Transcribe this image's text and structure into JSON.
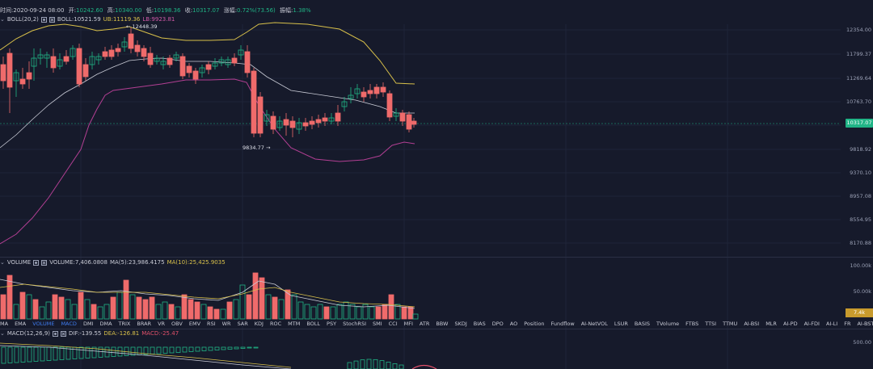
{
  "ohlc": {
    "time_label": "时间",
    "time": "2020-09-24 08:00",
    "open_label": "开",
    "open": "10242.60",
    "high_label": "高",
    "high": "10340.00",
    "low_label": "低",
    "low": "10198.36",
    "close_label": "收",
    "close": "10317.07",
    "change_label": "涨幅",
    "change": "0.72%(73.56)",
    "amp_label": "振幅",
    "amp": "1.38%"
  },
  "boll": {
    "label": "BOLL(20,2)",
    "mid": "BOLL:10521.59",
    "ub": "UB:11119.36",
    "lb": "LB:9923.81",
    "colors": {
      "mid": "#c9cbd6",
      "ub": "#d8c04a",
      "lb": "#b23f93"
    }
  },
  "annotations": {
    "high": "12448.39",
    "low": "9834.77"
  },
  "price_axis": [
    "12354.00",
    "11799.37",
    "11269.64",
    "10763.70",
    "10317.07",
    "9818.92",
    "9370.10",
    "8957.08",
    "8554.95",
    "8170.88"
  ],
  "current_price": "10317.07",
  "volume": {
    "label": "VOLUME",
    "value": "VOLUME:7,406.0808",
    "ma5": "MA(5):23,986.4175",
    "ma10": "MA(10):25,425.9035",
    "axis": [
      "100.00k",
      "50.00k"
    ],
    "current": "7.4k",
    "colors": {
      "ma5": "#c9cbd6",
      "ma10": "#d8c04a"
    }
  },
  "tabs": [
    "MA",
    "EMA",
    "VOLUME",
    "MACD",
    "DMI",
    "DMA",
    "TRIX",
    "BRAR",
    "VR",
    "OBV",
    "EMV",
    "RSI",
    "WR",
    "SAR",
    "KDJ",
    "ROC",
    "MTM",
    "BOLL",
    "PSY",
    "StochRSI",
    "SMI",
    "CCI",
    "MFI",
    "ATR",
    "BBW",
    "SKDJ",
    "BIAS",
    "DPO",
    "AO",
    "Position",
    "Fundflow",
    "AI-NetVOL",
    "LSUR",
    "BASIS",
    "TVolume",
    "FTBS",
    "TTSI",
    "TTMU",
    "AI-BSI",
    "MLR",
    "AI-PD",
    "AI-FDI",
    "AI-LI",
    "FR",
    "AI-BST"
  ],
  "active_tabs": [
    "VOLUME",
    "MACD"
  ],
  "macd": {
    "label": "MACD(12,26,9)",
    "dif": "DIF:-139.55",
    "dea": "DEA:-126.81",
    "macd": "MACD:-25.47",
    "axis": [
      "500.00"
    ],
    "colors": {
      "dif": "#c9cbd6",
      "dea": "#d8c04a",
      "macd": "#e0506a"
    }
  },
  "colors": {
    "up": "#20b486",
    "down": "#ef6b6b",
    "bg": "#161a2b"
  }
}
